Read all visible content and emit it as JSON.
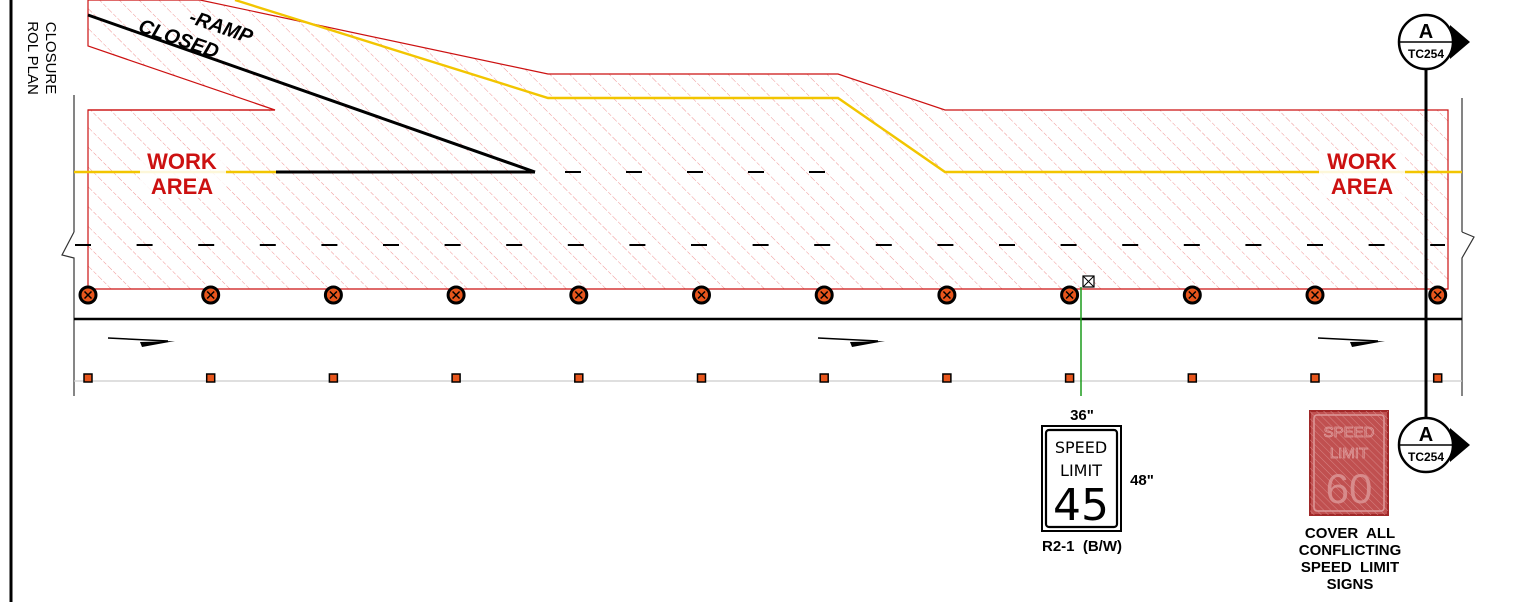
{
  "sheet": {
    "side_title_line1": "CLOSURE",
    "side_title_line2": "ROL PLAN"
  },
  "ramp_text": {
    "line1": "-RAMP",
    "line2": "CLOSED"
  },
  "work_area_left": {
    "line1": "WORK",
    "line2": "AREA"
  },
  "work_area_right": {
    "line1": "WORK",
    "line2": "AREA"
  },
  "section_markers": [
    {
      "letter": "A",
      "sheet": "TC254"
    },
    {
      "letter": "A",
      "sheet": "TC254"
    }
  ],
  "speed_sign": {
    "width_label": "36\"",
    "height_label": "48\"",
    "line1": "SPEED",
    "line2": "LIMIT",
    "value": "45",
    "code": "R2-1  (B/W)"
  },
  "covered_sign": {
    "line1": "SPEED",
    "line2": "LIMIT",
    "value": "60",
    "note_line1": "COVER  ALL",
    "note_line2": "CONFLICTING",
    "note_line3": "SPEED  LIMIT",
    "note_line4": "SIGNS"
  },
  "colors": {
    "work_area": "#cc1111",
    "hatch": "#ee8888",
    "centerline": "#f2c500",
    "drum": "#e8561c",
    "sign_leader": "#1a9a1a"
  }
}
